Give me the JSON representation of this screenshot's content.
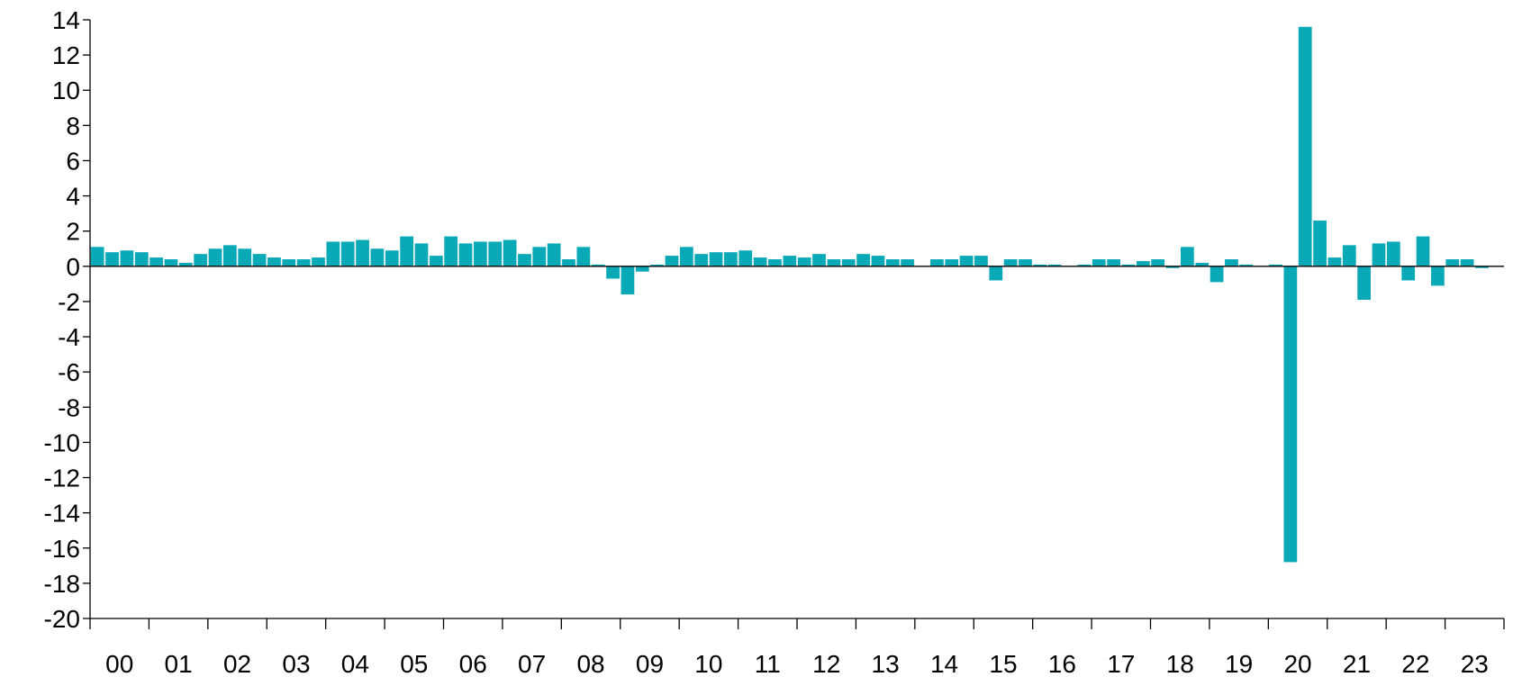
{
  "chart_data": {
    "type": "bar",
    "title": "",
    "xlabel": "",
    "ylabel": "",
    "ylim": [
      -20,
      14
    ],
    "yticks": [
      14,
      12,
      10,
      8,
      6,
      4,
      2,
      0,
      -2,
      -4,
      -6,
      -8,
      -10,
      -12,
      -14,
      -16,
      -18,
      -20
    ],
    "ytick_labels": [
      "14",
      "12",
      "10",
      "8",
      "6",
      "4",
      "2",
      "0",
      "-2",
      "-4",
      "-6",
      "-8",
      "-10",
      "-12",
      "-14",
      "-16",
      "-18",
      "-20"
    ],
    "xtick_labels": [
      "00",
      "01",
      "02",
      "03",
      "04",
      "05",
      "06",
      "07",
      "08",
      "09",
      "10",
      "11",
      "12",
      "13",
      "14",
      "15",
      "16",
      "17",
      "18",
      "19",
      "20",
      "21",
      "22",
      "23"
    ],
    "bar_color": "#0aa9b7",
    "grid": false,
    "legend": "none",
    "series": [
      {
        "values": [
          1.1,
          0.8,
          0.9,
          0.8,
          0.5,
          0.4,
          0.2,
          0.7,
          1.0,
          1.2,
          1.0,
          0.7,
          0.5,
          0.4,
          0.4,
          0.5,
          1.4,
          1.4,
          1.5,
          1.0,
          0.9,
          1.7,
          1.3,
          0.6,
          1.7,
          1.3,
          1.4,
          1.4,
          1.5,
          0.7,
          1.1,
          1.3,
          0.4,
          1.1,
          0.1,
          -0.7,
          -1.6,
          -0.3,
          0.1,
          0.6,
          1.1,
          0.7,
          0.8,
          0.8,
          0.9,
          0.5,
          0.4,
          0.6,
          0.5,
          0.7,
          0.4,
          0.4,
          0.7,
          0.6,
          0.4,
          0.4,
          0.0,
          0.4,
          0.4,
          0.6,
          0.6,
          -0.8,
          0.4,
          0.4,
          0.1,
          0.1,
          0.0,
          0.1,
          0.4,
          0.4,
          0.1,
          0.3,
          0.4,
          -0.1,
          1.1,
          0.2,
          -0.9,
          0.4,
          0.1,
          0.0,
          0.1,
          -16.8,
          13.6,
          2.6,
          0.5,
          1.2,
          -1.9,
          1.3,
          1.4,
          -0.8,
          1.7,
          -1.1,
          0.4,
          0.4,
          -0.1,
          0.0
        ]
      }
    ]
  }
}
